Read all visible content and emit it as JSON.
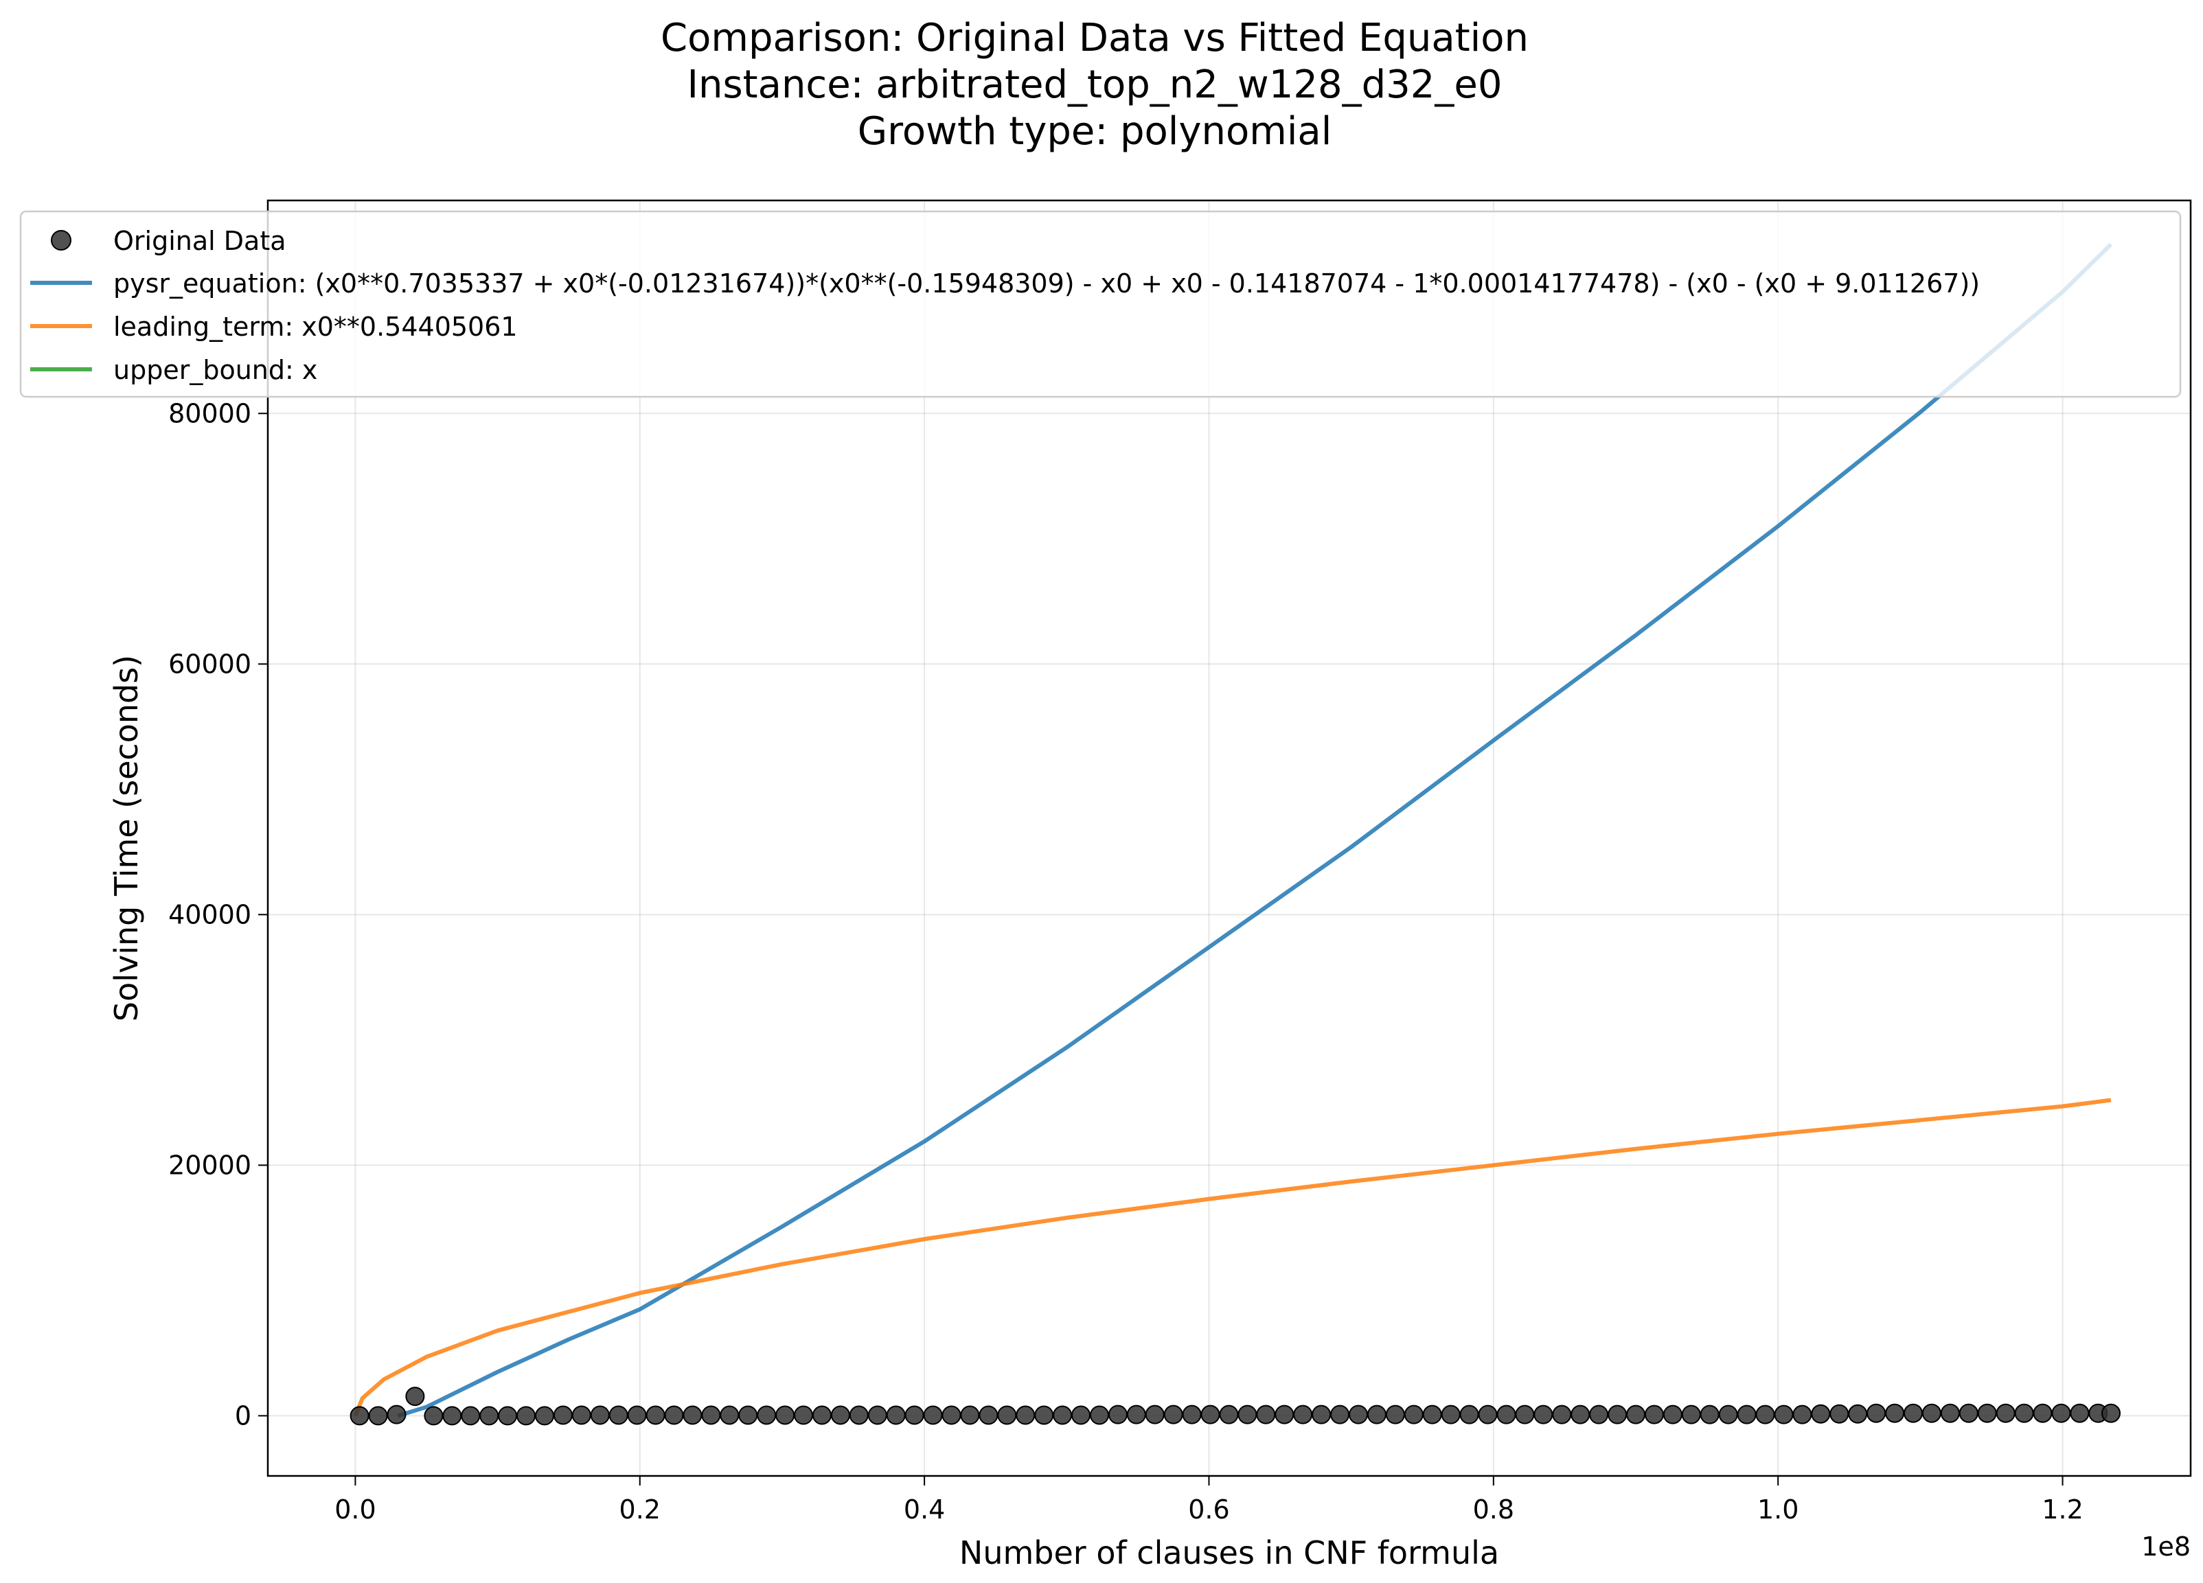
{
  "chart_data": {
    "type": "line",
    "title": [
      "Comparison: Original Data vs Fitted Equation",
      "Instance: arbitrated_top_n2_w128_d32_e0",
      "Growth type: polynomial"
    ],
    "xlabel": "Number of clauses in CNF formula",
    "ylabel": "Solving Time (seconds)",
    "x_offset_label": "1e8",
    "xlim": [
      -0.0615,
      1.29
    ],
    "ylim": [
      -4800,
      97000
    ],
    "x_scale": 100000000,
    "xticks": [
      0.0,
      0.2,
      0.4,
      0.6,
      0.8,
      1.0,
      1.2
    ],
    "xtick_labels": [
      "0.0",
      "0.2",
      "0.4",
      "0.6",
      "0.8",
      "1.0",
      "1.2"
    ],
    "yticks": [
      0,
      20000,
      40000,
      60000,
      80000
    ],
    "ytick_labels": [
      "0",
      "20000",
      "40000",
      "60000",
      "80000"
    ],
    "grid": true,
    "legend_position": "top-left",
    "legend": [
      {
        "label": "Original Data",
        "kind": "marker",
        "color": "#333333"
      },
      {
        "label": "pysr_equation: (x0**0.7035337 + x0*(-0.01231674))*(x0**(-0.15948309) - x0 + x0 - 0.14187074 - 1*0.00014177478) - (x0 - (x0 + 9.011267))",
        "kind": "line",
        "color": "#1f77b4"
      },
      {
        "label": "leading_term: x0**0.54405061",
        "kind": "line",
        "color": "#ff7f0e"
      },
      {
        "label": "upper_bound: x",
        "kind": "line",
        "color": "#2ca02c"
      }
    ],
    "series": [
      {
        "name": "Original Data",
        "kind": "scatter",
        "color": "#333333",
        "x": [
          0.003,
          0.016,
          0.029,
          0.042,
          0.055,
          0.068,
          0.081,
          0.094,
          0.107,
          0.12,
          0.133,
          0.146,
          0.159,
          0.172,
          0.185,
          0.198,
          0.211,
          0.224,
          0.237,
          0.25,
          0.263,
          0.276,
          0.289,
          0.302,
          0.315,
          0.328,
          0.341,
          0.354,
          0.367,
          0.38,
          0.393,
          0.406,
          0.419,
          0.432,
          0.445,
          0.458,
          0.471,
          0.484,
          0.497,
          0.51,
          0.523,
          0.536,
          0.549,
          0.562,
          0.575,
          0.588,
          0.601,
          0.614,
          0.627,
          0.64,
          0.653,
          0.666,
          0.679,
          0.692,
          0.705,
          0.718,
          0.731,
          0.744,
          0.757,
          0.77,
          0.783,
          0.796,
          0.809,
          0.822,
          0.835,
          0.848,
          0.861,
          0.874,
          0.887,
          0.9,
          0.913,
          0.926,
          0.939,
          0.952,
          0.965,
          0.978,
          0.991,
          1.004,
          1.017,
          1.03,
          1.043,
          1.056,
          1.069,
          1.082,
          1.095,
          1.108,
          1.121,
          1.134,
          1.147,
          1.16,
          1.173,
          1.186,
          1.199,
          1.212,
          1.225,
          1.234
        ],
        "y": [
          0,
          0,
          100,
          1550,
          0,
          0,
          0,
          0,
          0,
          0,
          0,
          50,
          50,
          50,
          50,
          50,
          50,
          50,
          50,
          50,
          50,
          50,
          50,
          50,
          50,
          50,
          50,
          50,
          50,
          50,
          50,
          50,
          50,
          50,
          50,
          50,
          50,
          50,
          50,
          50,
          50,
          100,
          100,
          100,
          100,
          100,
          100,
          100,
          100,
          100,
          100,
          100,
          100,
          100,
          100,
          100,
          100,
          100,
          100,
          100,
          100,
          100,
          100,
          100,
          100,
          100,
          100,
          100,
          100,
          100,
          100,
          100,
          100,
          100,
          100,
          100,
          100,
          100,
          100,
          150,
          150,
          150,
          200,
          200,
          200,
          200,
          200,
          200,
          200,
          200,
          200,
          200,
          200,
          200,
          200,
          200
        ]
      },
      {
        "name": "pysr_equation: (x0**0.7035337 + x0*(-0.01231674))*(x0**(-0.15948309) - x0 + x0 - 0.14187074 - 1*0.00014177478) - (x0 - (x0 + 9.011267))",
        "kind": "line",
        "color": "#1f77b4",
        "x": [
          0.03,
          0.05,
          0.1,
          0.15,
          0.2,
          0.3,
          0.4,
          0.5,
          0.6,
          0.7,
          0.8,
          0.9,
          1.0,
          1.1,
          1.2,
          1.234
        ],
        "y": [
          0,
          700,
          3500,
          6100,
          8500,
          15100,
          21900,
          29400,
          37400,
          45400,
          53900,
          62300,
          71000,
          80100,
          89700,
          93500
        ]
      },
      {
        "name": "leading_term: x0**0.54405061",
        "kind": "line",
        "color": "#ff7f0e",
        "x": [
          0.0,
          0.005,
          0.02,
          0.05,
          0.1,
          0.2,
          0.3,
          0.4,
          0.5,
          0.6,
          0.7,
          0.8,
          0.9,
          1.0,
          1.1,
          1.2,
          1.234
        ],
        "y": [
          0,
          1400,
          2900,
          4700,
          6800,
          9800,
          12100,
          14100,
          15800,
          17300,
          18700,
          20000,
          21300,
          22500,
          23600,
          24700,
          25200
        ]
      },
      {
        "name": "upper_bound: x",
        "kind": "line",
        "color": "#2ca02c",
        "x": [],
        "y": []
      }
    ]
  }
}
